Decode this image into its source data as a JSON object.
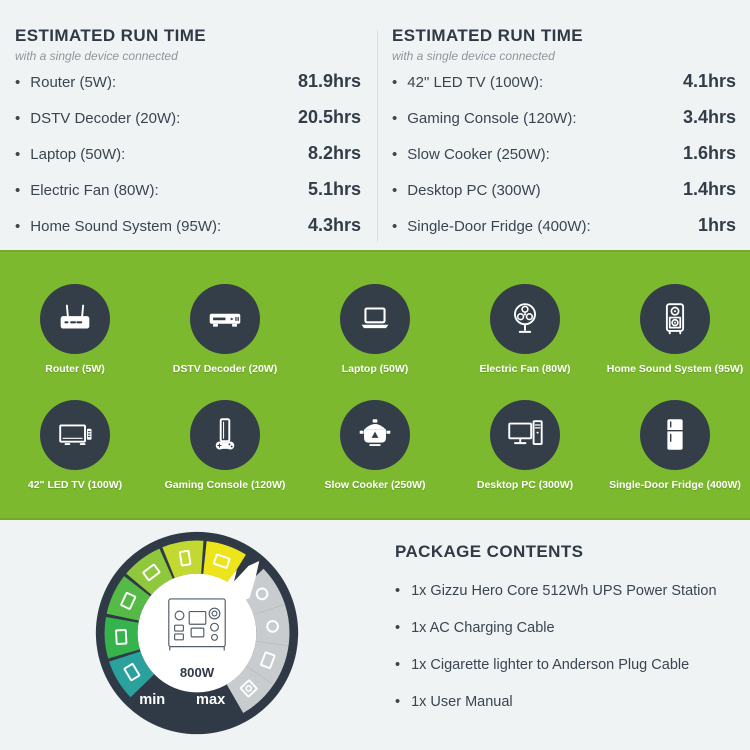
{
  "runtime_columns": [
    {
      "title": "ESTIMATED RUN TIME",
      "subtitle": "with a single device connected",
      "items": [
        {
          "label": "Router (5W):",
          "value": "81.9hrs"
        },
        {
          "label": "DSTV Decoder (20W):",
          "value": "20.5hrs"
        },
        {
          "label": "Laptop (50W):",
          "value": "8.2hrs"
        },
        {
          "label": "Electric Fan (80W):",
          "value": "5.1hrs"
        },
        {
          "label": "Home Sound System (95W):",
          "value": "4.3hrs"
        }
      ]
    },
    {
      "title": "ESTIMATED RUN TIME",
      "subtitle": "with a single device connected",
      "items": [
        {
          "label": "42\" LED TV (100W):",
          "value": "4.1hrs"
        },
        {
          "label": "Gaming Console (120W):",
          "value": "3.4hrs"
        },
        {
          "label": "Slow Cooker (250W):",
          "value": "1.6hrs"
        },
        {
          "label": "Desktop PC (300W)",
          "value": "1.4hrs"
        },
        {
          "label": "Single-Door Fridge (400W):",
          "value": "1hrs"
        }
      ]
    }
  ],
  "devices": [
    {
      "label": "Router (5W)",
      "icon": "router-icon"
    },
    {
      "label": "DSTV Decoder (20W)",
      "icon": "dstv-decoder-icon"
    },
    {
      "label": "Laptop (50W)",
      "icon": "laptop-icon"
    },
    {
      "label": "Electric Fan (80W)",
      "icon": "electric-fan-icon"
    },
    {
      "label": "Home Sound System (95W)",
      "icon": "home-sound-system-icon"
    },
    {
      "label": "42\" LED TV (100W)",
      "icon": "led-tv-icon"
    },
    {
      "label": "Gaming Console (120W)",
      "icon": "gaming-console-icon"
    },
    {
      "label": "Slow Cooker (250W)",
      "icon": "slow-cooker-icon"
    },
    {
      "label": "Desktop PC (300W)",
      "icon": "desktop-pc-icon"
    },
    {
      "label": "Single-Door Fridge (400W)",
      "icon": "fridge-icon"
    }
  ],
  "gauge": {
    "center_label": "800W",
    "min_label": "min",
    "max_label": "max",
    "ring_color": "#2F3A46",
    "segments": [
      {
        "from": 226,
        "to": 252,
        "color": "#2BA19D",
        "icon": "router"
      },
      {
        "from": 254,
        "to": 280,
        "color": "#36B44B",
        "icon": "laptop"
      },
      {
        "from": 282,
        "to": 308,
        "color": "#55BA46",
        "icon": "desktop"
      },
      {
        "from": 310,
        "to": 336,
        "color": "#8FC73D",
        "icon": "microwave"
      },
      {
        "from": 338,
        "to": 364,
        "color": "#C3D831",
        "icon": "fridge"
      },
      {
        "from": 366,
        "to": 392,
        "color": "#EDE41C",
        "icon": "tv"
      },
      {
        "from": 46,
        "to": 72,
        "color": "#C9CCCE",
        "icon": "kettle"
      },
      {
        "from": 72,
        "to": 98,
        "color": "#C9CCCE",
        "icon": "dryer"
      },
      {
        "from": 98,
        "to": 124,
        "color": "#C9CCCE",
        "icon": "drill"
      },
      {
        "from": 124,
        "to": 150,
        "color": "#C9CCCE",
        "icon": "washer"
      }
    ]
  },
  "package": {
    "title": "PACKAGE CONTENTS",
    "items": [
      "1x Gizzu Hero Core 512Wh UPS Power Station",
      "1x AC Charging Cable",
      "1x Cigarette lighter to Anderson Plug Cable",
      "1x User Manual"
    ]
  },
  "colors": {
    "background": "#F0F3F4",
    "band_green": "#7CB92F",
    "dark_navy": "#2F3A46",
    "icon_circle": "#333E49",
    "gray_segment": "#C9CCCE"
  }
}
